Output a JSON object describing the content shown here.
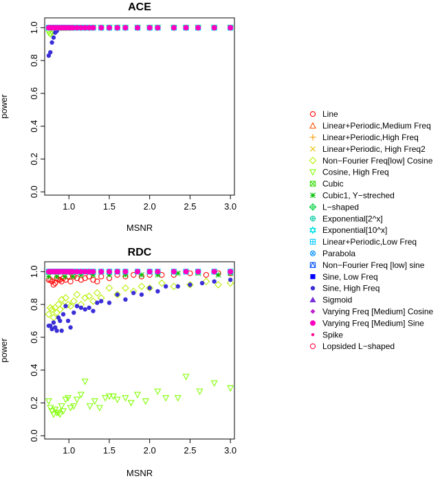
{
  "chart_data": [
    {
      "type": "scatter",
      "title": "ACE",
      "xlabel": "MSNR",
      "ylabel": "power",
      "xlim": [
        0.7,
        3.05
      ],
      "ylim": [
        -0.02,
        1.06
      ],
      "xticks": [
        "1.0",
        "1.5",
        "2.0",
        "2.5",
        "3.0"
      ],
      "yticks": [
        "0.0",
        "0.2",
        "0.4",
        "0.6",
        "0.8",
        "1.0"
      ],
      "x": [
        0.75,
        0.77,
        0.79,
        0.81,
        0.83,
        0.85,
        0.87,
        0.89,
        0.91,
        0.93,
        0.95,
        0.97,
        1.0,
        1.02,
        1.05,
        1.1,
        1.15,
        1.2,
        1.25,
        1.3,
        1.4,
        1.5,
        1.6,
        1.7,
        1.85,
        2.0,
        2.1,
        2.3,
        2.45,
        2.6,
        2.8,
        3.0
      ],
      "series": [
        {
          "name": "Line",
          "marker": "circle",
          "color": "#ff0000",
          "values": [
            1,
            1,
            1,
            1,
            1,
            1,
            1,
            1,
            1,
            1,
            1,
            1,
            1,
            1,
            1,
            1,
            1,
            1,
            1,
            1,
            1,
            1,
            1,
            1,
            1,
            1,
            1,
            1,
            1,
            1,
            1,
            1
          ]
        },
        {
          "name": "Cosine, High Freq",
          "marker": "triangle-down",
          "color": "#80ff00",
          "values": [
            0.97,
            0.96,
            0.97,
            0.98,
            0.99,
            1,
            1,
            1,
            1,
            1,
            1,
            1,
            1,
            1,
            1,
            1,
            1,
            1,
            1,
            1,
            1,
            1,
            1,
            1,
            1,
            1,
            1,
            1,
            1,
            1,
            1,
            1
          ]
        },
        {
          "name": "Sine, High Freq",
          "marker": "dot",
          "color": "#3a2ed8",
          "values": [
            0.83,
            0.85,
            0.91,
            0.94,
            0.97,
            0.98,
            1,
            1,
            1,
            1,
            1,
            1,
            1,
            1,
            1,
            1,
            1,
            1,
            1,
            1,
            1,
            1,
            1,
            1,
            1,
            1,
            1,
            1,
            1,
            1,
            1,
            1
          ]
        },
        {
          "name": "Linear+Periodic,Low Freq",
          "marker": "square-plus",
          "color": "#00d8ff",
          "values": [
            1,
            1,
            1,
            1,
            1,
            1,
            1,
            1,
            1,
            1,
            1,
            1,
            1,
            1,
            1,
            1,
            1,
            1,
            1,
            1,
            1,
            1,
            1,
            1,
            1,
            1,
            1,
            1,
            1,
            1,
            1,
            1
          ]
        },
        {
          "name": "Varying Freq [Medium] Sine",
          "marker": "dot-large",
          "color": "#ff00c0",
          "values": [
            1,
            1,
            1,
            1,
            1,
            1,
            1,
            1,
            1,
            1,
            1,
            1,
            1,
            1,
            1,
            1,
            1,
            1,
            1,
            1,
            1,
            1,
            1,
            1,
            1,
            1,
            1,
            1,
            1,
            1,
            1,
            1
          ]
        }
      ]
    },
    {
      "type": "scatter",
      "title": "RDC",
      "xlabel": "MSNR",
      "ylabel": "power",
      "xlim": [
        0.7,
        3.05
      ],
      "ylim": [
        -0.02,
        1.06
      ],
      "xticks": [
        "1.0",
        "1.5",
        "2.0",
        "2.5",
        "3.0"
      ],
      "yticks": [
        "0.0",
        "0.2",
        "0.4",
        "0.6",
        "0.8",
        "1.0"
      ],
      "series": [
        {
          "name": "Cosine, High Freq",
          "marker": "triangle-down",
          "color": "#80ff00",
          "x": [
            0.75,
            0.77,
            0.79,
            0.81,
            0.83,
            0.85,
            0.87,
            0.89,
            0.91,
            0.93,
            0.96,
            0.99,
            1.02,
            1.06,
            1.1,
            1.15,
            1.2,
            1.26,
            1.32,
            1.38,
            1.45,
            1.5,
            1.55,
            1.6,
            1.7,
            1.77,
            1.85,
            1.95,
            2.1,
            2.2,
            2.35,
            2.45,
            2.62,
            2.8,
            3.0
          ],
          "values": [
            0.21,
            0.17,
            0.15,
            0.13,
            0.16,
            0.14,
            0.14,
            0.13,
            0.18,
            0.15,
            0.22,
            0.23,
            0.17,
            0.18,
            0.22,
            0.25,
            0.33,
            0.18,
            0.21,
            0.17,
            0.23,
            0.24,
            0.24,
            0.22,
            0.23,
            0.2,
            0.25,
            0.21,
            0.27,
            0.23,
            0.23,
            0.36,
            0.27,
            0.32,
            0.29
          ]
        },
        {
          "name": "Non−Fourier Freq[low] Cosine",
          "marker": "diamond",
          "color": "#b8f000",
          "x": [
            0.75,
            0.77,
            0.79,
            0.81,
            0.83,
            0.85,
            0.87,
            0.89,
            0.91,
            0.93,
            0.96,
            0.99,
            1.02,
            1.06,
            1.1,
            1.15,
            1.2,
            1.25,
            1.3,
            1.35,
            1.4,
            1.5,
            1.6,
            1.7,
            1.8,
            1.9,
            2.0,
            2.15,
            2.3,
            2.5,
            2.7,
            2.85,
            3.0
          ],
          "values": [
            0.74,
            0.78,
            0.77,
            0.72,
            0.78,
            0.75,
            0.8,
            0.77,
            0.83,
            0.79,
            0.84,
            0.8,
            0.79,
            0.82,
            0.86,
            0.8,
            0.84,
            0.85,
            0.82,
            0.87,
            0.84,
            0.9,
            0.86,
            0.9,
            0.88,
            0.91,
            0.9,
            0.93,
            0.91,
            0.92,
            0.94,
            0.92,
            0.93
          ]
        },
        {
          "name": "Sine, High Freq",
          "marker": "dot",
          "color": "#3a2ed8",
          "x": [
            0.75,
            0.77,
            0.79,
            0.81,
            0.83,
            0.85,
            0.87,
            0.89,
            0.91,
            0.93,
            0.96,
            0.99,
            1.02,
            1.06,
            1.1,
            1.15,
            1.2,
            1.25,
            1.3,
            1.35,
            1.4,
            1.5,
            1.6,
            1.7,
            1.8,
            1.9,
            2.0,
            2.1,
            2.2,
            2.35,
            2.5,
            2.65,
            2.8,
            3.0
          ],
          "values": [
            0.67,
            0.67,
            0.65,
            0.69,
            0.66,
            0.64,
            0.72,
            0.7,
            0.64,
            0.74,
            0.79,
            0.7,
            0.66,
            0.75,
            0.79,
            0.78,
            0.77,
            0.78,
            0.76,
            0.81,
            0.82,
            0.81,
            0.86,
            0.83,
            0.87,
            0.86,
            0.9,
            0.88,
            0.91,
            0.91,
            0.92,
            0.93,
            0.94,
            0.95
          ]
        },
        {
          "name": "Line",
          "marker": "circle",
          "color": "#ff0000",
          "x": [
            0.75,
            0.77,
            0.79,
            0.81,
            0.83,
            0.85,
            0.87,
            0.89,
            0.91,
            0.93,
            0.96,
            0.99,
            1.02,
            1.06,
            1.1,
            1.15,
            1.2,
            1.25,
            1.3,
            1.35,
            1.4,
            1.5,
            1.6,
            1.7,
            1.8,
            1.9,
            2.0,
            2.15,
            2.3,
            2.5,
            2.7,
            2.85,
            3.0
          ],
          "values": [
            0.95,
            0.95,
            0.94,
            0.92,
            0.93,
            0.96,
            0.95,
            0.95,
            0.94,
            0.96,
            0.95,
            0.97,
            0.94,
            0.97,
            0.96,
            0.95,
            0.96,
            0.97,
            0.95,
            0.94,
            0.97,
            0.96,
            0.98,
            0.97,
            0.98,
            0.97,
            0.98,
            0.98,
            0.98,
            0.99,
            0.98,
            0.99,
            0.99
          ]
        },
        {
          "name": "Cubic1, Y−streched",
          "marker": "asterisk",
          "color": "#00c000",
          "x": [
            0.75,
            0.85,
            0.95,
            1.05,
            1.15,
            1.3,
            1.5,
            1.7,
            1.9,
            2.1,
            2.35,
            2.6,
            2.85,
            3.0
          ],
          "values": [
            0.97,
            0.97,
            0.97,
            0.97,
            0.98,
            0.98,
            0.98,
            0.98,
            0.98,
            0.98,
            0.99,
            0.99,
            0.98,
            0.99
          ]
        },
        {
          "name": "Linear+Periodic,Low Freq",
          "marker": "square-plus",
          "color": "#00d8ff",
          "x": [
            0.75,
            0.77,
            0.79,
            0.81,
            0.83,
            0.85,
            0.87,
            0.89,
            0.91,
            0.93,
            0.95,
            0.97,
            1.0,
            1.02,
            1.05,
            1.1,
            1.15,
            1.2,
            1.25,
            1.3,
            1.4,
            1.5,
            1.6,
            1.7,
            1.85,
            2.0,
            2.1,
            2.3,
            2.45,
            2.6,
            2.8,
            3.0
          ],
          "values": [
            1,
            1,
            1,
            1,
            1,
            1,
            1,
            1,
            1,
            1,
            1,
            1,
            1,
            1,
            1,
            1,
            1,
            1,
            1,
            1,
            1,
            1,
            1,
            1,
            1,
            1,
            1,
            1,
            1,
            1,
            1,
            1
          ]
        },
        {
          "name": "Varying Freq [Medium] Sine",
          "marker": "dot-large",
          "color": "#ff00c0",
          "x": [
            0.75,
            0.77,
            0.79,
            0.81,
            0.83,
            0.85,
            0.87,
            0.89,
            0.91,
            0.93,
            0.95,
            0.97,
            1.0,
            1.02,
            1.05,
            1.1,
            1.15,
            1.2,
            1.25,
            1.3,
            1.4,
            1.5,
            1.6,
            1.7,
            1.85,
            2.0,
            2.1,
            2.3,
            2.45,
            2.6,
            2.8,
            3.0
          ],
          "values": [
            1,
            1,
            1,
            1,
            1,
            1,
            1,
            1,
            1,
            1,
            1,
            1,
            1,
            1,
            1,
            1,
            1,
            1,
            1,
            1,
            1,
            1,
            1,
            1,
            1,
            1,
            1,
            1,
            1,
            1,
            1,
            1
          ]
        }
      ]
    }
  ],
  "legend": {
    "placement": "right",
    "entries": [
      {
        "label": "Line",
        "marker": "circle",
        "color": "#ff0000"
      },
      {
        "label": "Linear+Periodic,Medium Freq",
        "marker": "triangle",
        "color": "#ff5500"
      },
      {
        "label": "Linear+Periodic,High Freq",
        "marker": "plus",
        "color": "#ff9900"
      },
      {
        "label": "Linear+Periodic, High Freq2",
        "marker": "cross",
        "color": "#e6c000"
      },
      {
        "label": "Non−Fourier Freq[low] Cosine",
        "marker": "diamond",
        "color": "#b8f000"
      },
      {
        "label": "Cosine, High Freq",
        "marker": "triangle-down",
        "color": "#80ff00"
      },
      {
        "label": "Cubic",
        "marker": "square-cross",
        "color": "#33dd00"
      },
      {
        "label": "Cubic1, Y−streched",
        "marker": "asterisk",
        "color": "#00c000"
      },
      {
        "label": "L−shaped",
        "marker": "diamond-plus",
        "color": "#00d040"
      },
      {
        "label": "Exponential[2^x]",
        "marker": "circle-plus",
        "color": "#00c8a0"
      },
      {
        "label": "Exponential[10^x]",
        "marker": "star-of-david",
        "color": "#00e0e0"
      },
      {
        "label": "Linear+Periodic,Low Freq",
        "marker": "square-plus",
        "color": "#00c8ff"
      },
      {
        "label": "Parabola",
        "marker": "circle-cross",
        "color": "#0090ff"
      },
      {
        "label": "Non−Fourier Freq [low] sine",
        "marker": "square-triangle",
        "color": "#0050ff"
      },
      {
        "label": "Sine, Low Freq",
        "marker": "square-filled",
        "color": "#0000ff"
      },
      {
        "label": "Sine, High Freq",
        "marker": "dot",
        "color": "#3a2ed8"
      },
      {
        "label": "Sigmoid",
        "marker": "triangle-filled",
        "color": "#7a30d8"
      },
      {
        "label": "Varying Freq [Medium] Cosine",
        "marker": "diamond-filled",
        "color": "#c020d0"
      },
      {
        "label": "Varying Freq [Medium] Sine",
        "marker": "dot-large",
        "color": "#ff00c0"
      },
      {
        "label": "Spike",
        "marker": "dot-small",
        "color": "#ff0090"
      },
      {
        "label": "Lopsided L−shaped",
        "marker": "circle",
        "color": "#ff0040"
      }
    ]
  }
}
